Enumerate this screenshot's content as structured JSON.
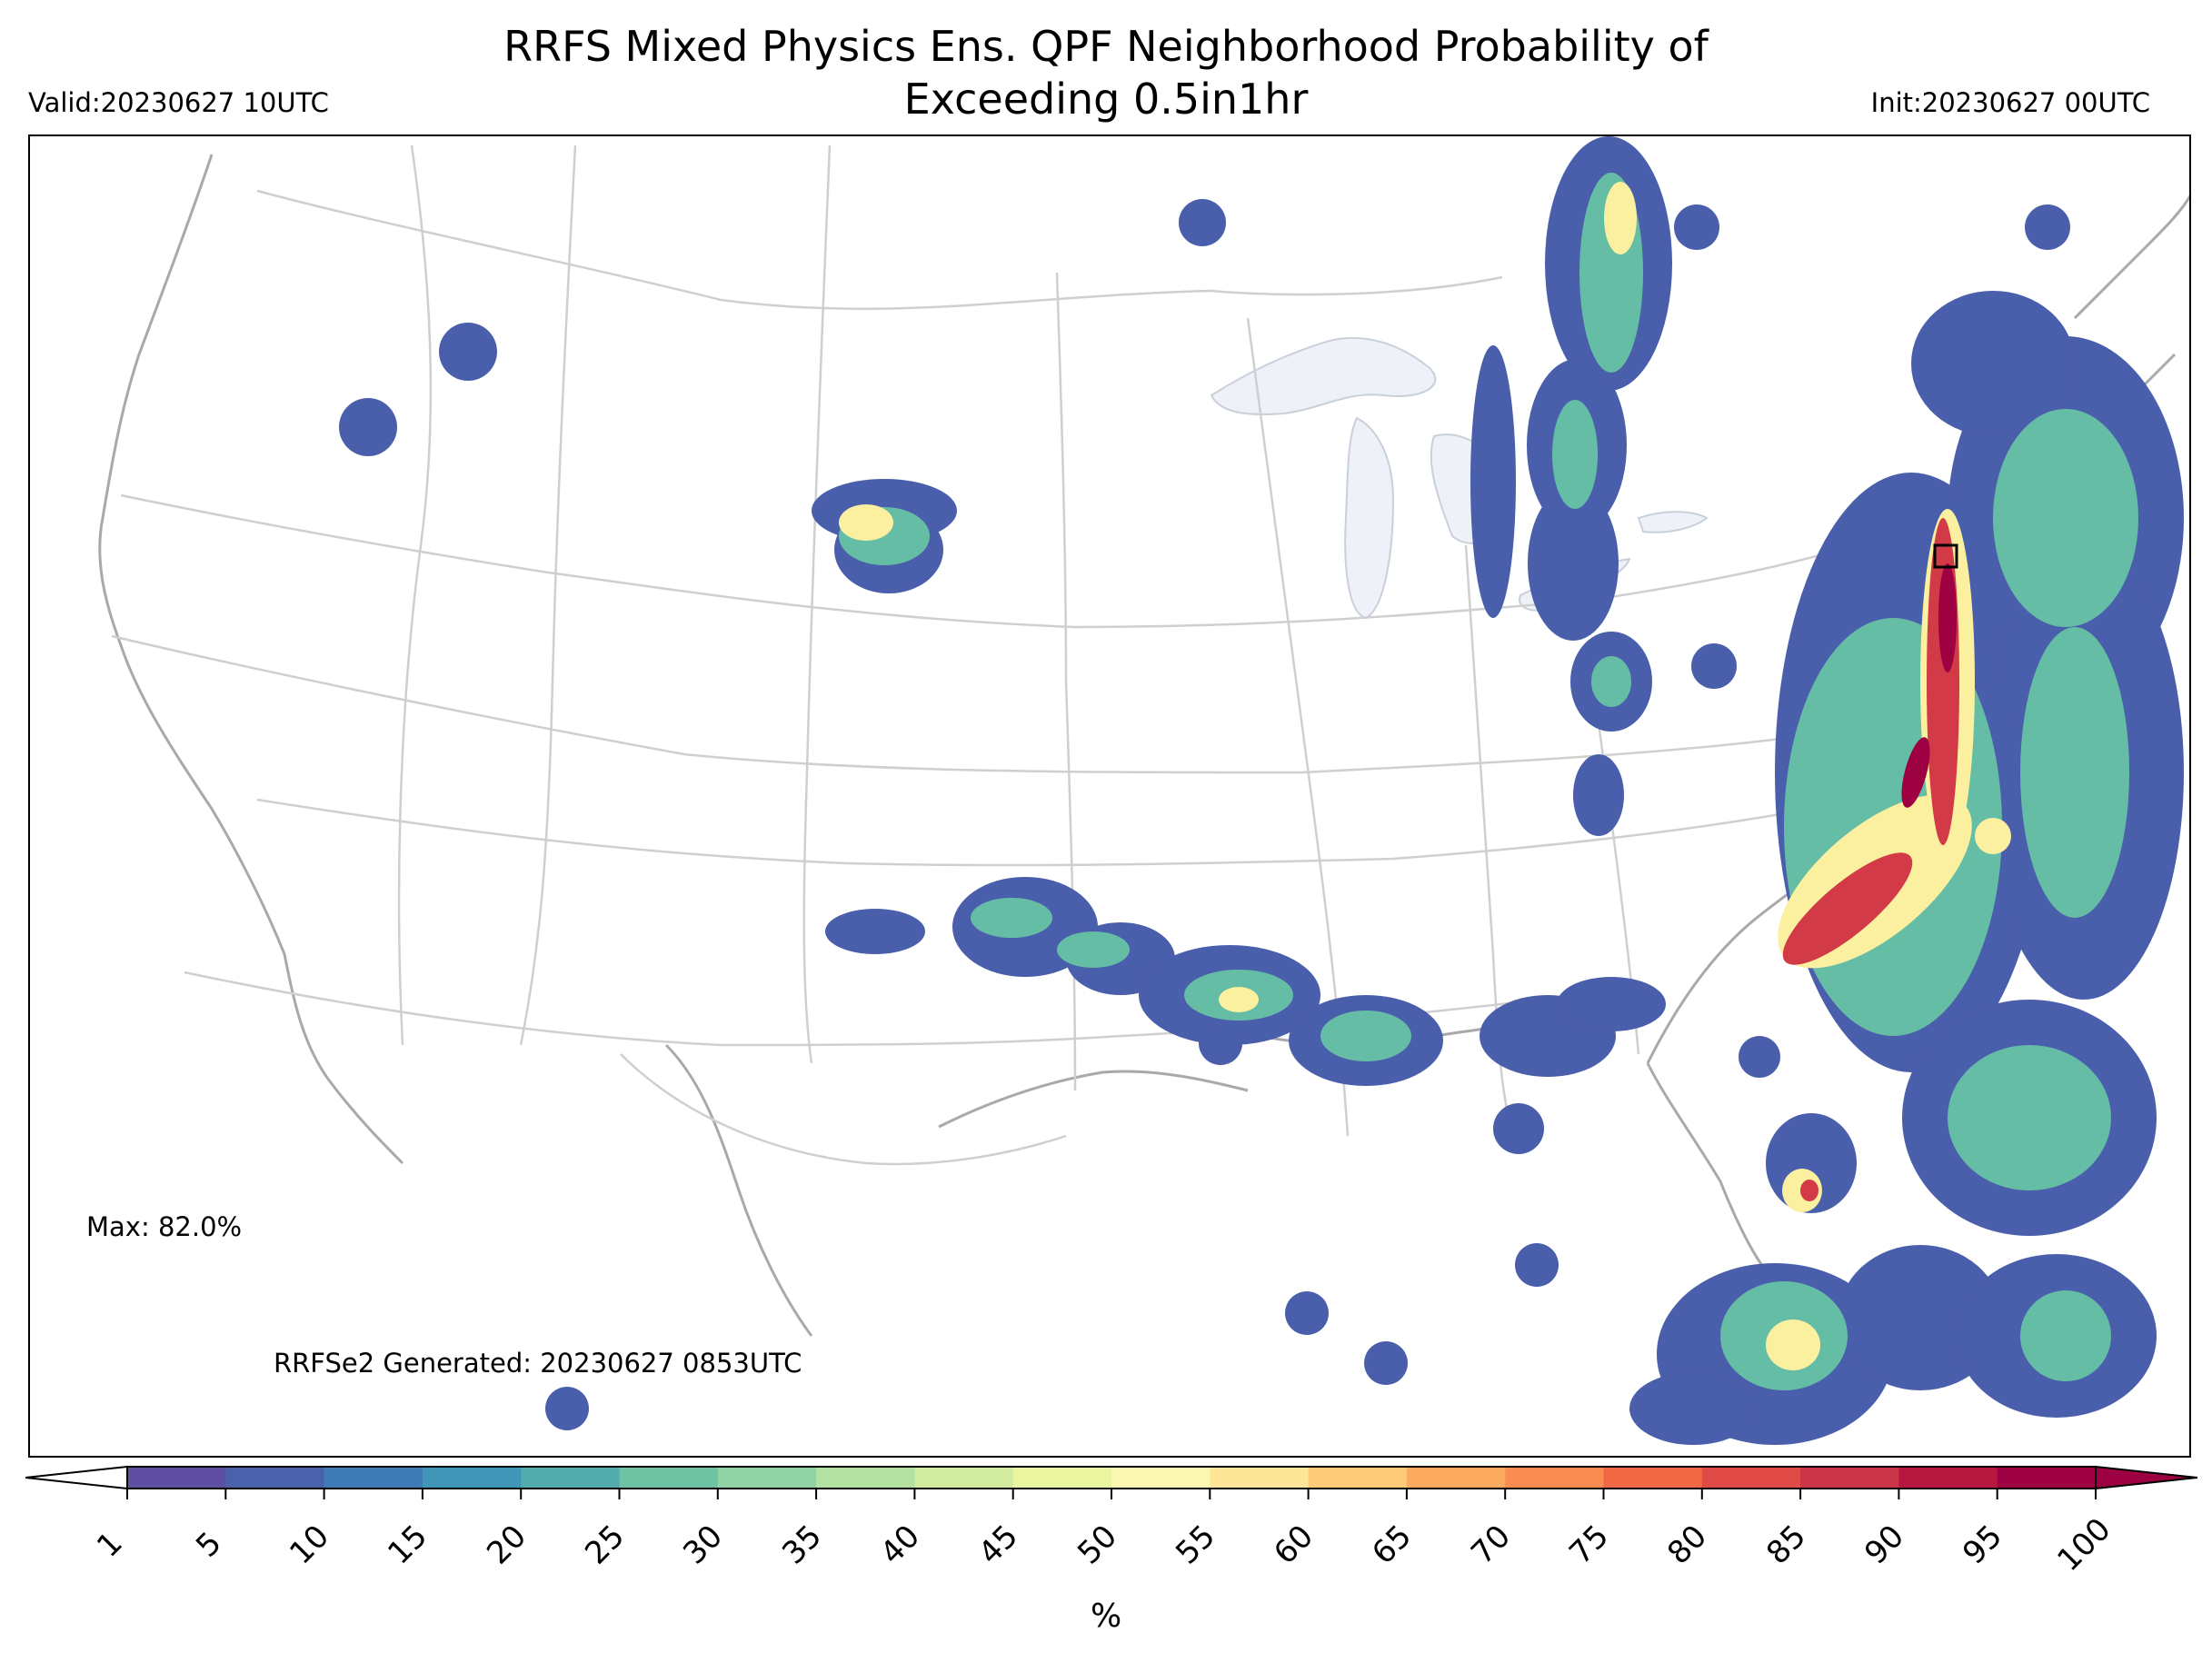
{
  "title_line1": "RRFS Mixed Physics Ens. QPF Neighborhood Probability of",
  "title_line2": "Exceeding 0.5in1hr",
  "valid": "Valid:20230627 10UTC",
  "init": "Init:20230627 00UTC",
  "max_text": "Max: 82.0%",
  "generated": "RRFSe2 Generated: 20230627 0853UTC",
  "colorbar": {
    "unit": "%",
    "ticks": [
      "1",
      "5",
      "10",
      "15",
      "20",
      "25",
      "30",
      "35",
      "40",
      "45",
      "50",
      "55",
      "60",
      "65",
      "70",
      "75",
      "80",
      "85",
      "90",
      "95",
      "100"
    ],
    "colors": [
      "#5e4fa2",
      "#4a62ab",
      "#3f7cb7",
      "#3f96b7",
      "#52abad",
      "#6fc3a5",
      "#91d3a4",
      "#b3e1a2",
      "#d1ec9f",
      "#ebf6a1",
      "#fbf6b0",
      "#fee698",
      "#fdca79",
      "#fcaa5f",
      "#f88c51",
      "#f16845",
      "#e04a47",
      "#ca3548",
      "#b5173f",
      "#9e0142"
    ]
  },
  "max_marker": "square"
}
